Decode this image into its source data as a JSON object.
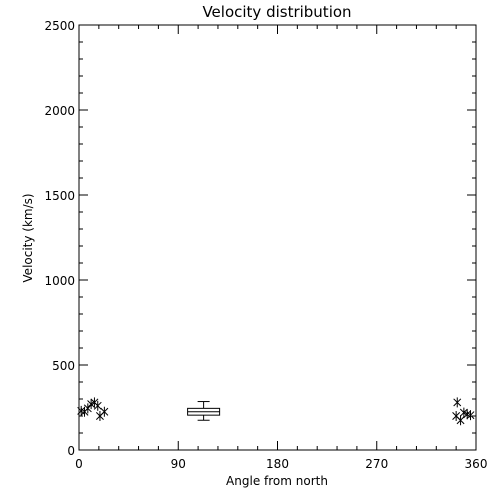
{
  "chart_data": {
    "type": "scatter",
    "title": "Velocity distribution",
    "xlabel": "Angle from north",
    "ylabel": "Velocity (km/s)",
    "xlim": [
      0,
      360
    ],
    "ylim": [
      0,
      2500
    ],
    "xticks": [
      0,
      90,
      180,
      270,
      360
    ],
    "yticks": [
      0,
      500,
      1000,
      1500,
      2000,
      2500
    ],
    "xtick_labels": [
      "0",
      "90",
      "180",
      "270",
      "360"
    ],
    "ytick_labels": [
      "0",
      "500",
      "1000",
      "1500",
      "2000",
      "2500"
    ],
    "grid": false,
    "points": [
      {
        "x": 2,
        "y": 230
      },
      {
        "x": 5,
        "y": 225
      },
      {
        "x": 8,
        "y": 245
      },
      {
        "x": 11,
        "y": 270
      },
      {
        "x": 14,
        "y": 280
      },
      {
        "x": 17,
        "y": 260
      },
      {
        "x": 19,
        "y": 200
      },
      {
        "x": 23,
        "y": 225
      },
      {
        "x": 343,
        "y": 280
      },
      {
        "x": 342,
        "y": 200
      },
      {
        "x": 346,
        "y": 175
      },
      {
        "x": 349,
        "y": 220
      },
      {
        "x": 352,
        "y": 210
      },
      {
        "x": 355,
        "y": 205
      }
    ],
    "boxplot": {
      "x": 113,
      "whisker_low": 175,
      "q1": 205,
      "median": 225,
      "q3": 245,
      "whisker_high": 285
    },
    "colors": {
      "ink": "#000000",
      "background": "#ffffff"
    }
  }
}
